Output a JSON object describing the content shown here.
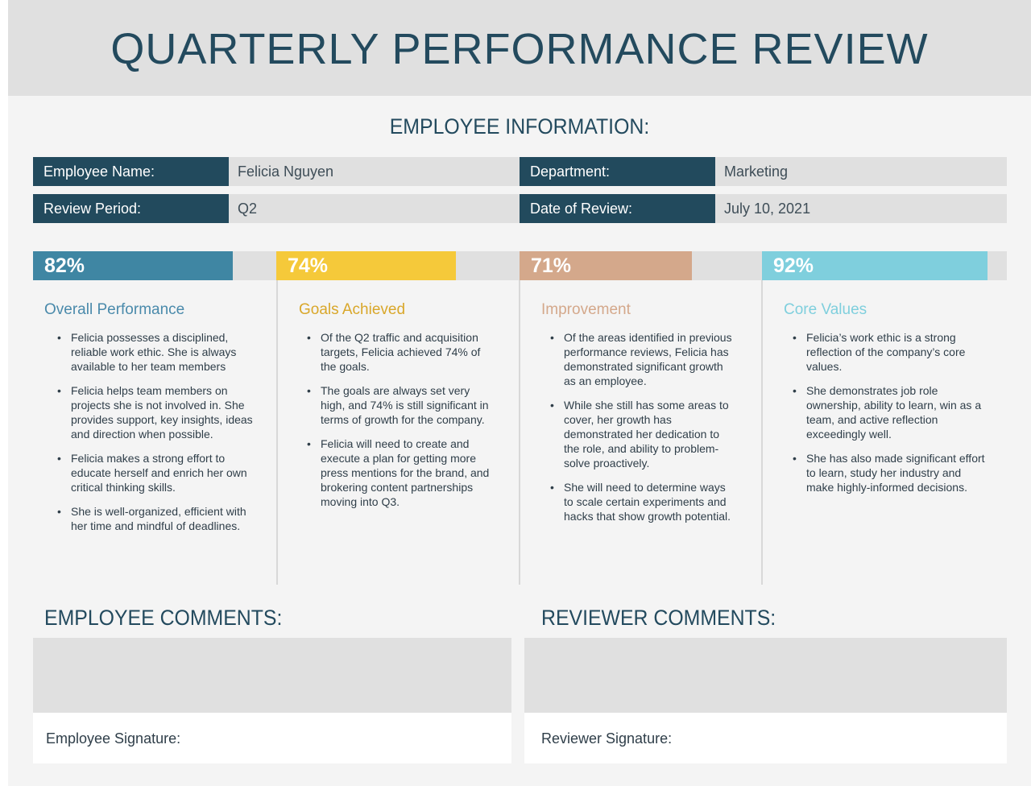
{
  "title": "QUARTERLY PERFORMANCE REVIEW",
  "employee_info": {
    "heading": "EMPLOYEE INFORMATION:",
    "fields": [
      {
        "label": "Employee Name:",
        "value": "Felicia Nguyen"
      },
      {
        "label": "Department:",
        "value": "Marketing"
      },
      {
        "label": "Review Period:",
        "value": "Q2"
      },
      {
        "label": "Date of Review:",
        "value": "July 10, 2021"
      }
    ]
  },
  "metrics": [
    {
      "percent_label": "82%",
      "value": 0.82,
      "color": "#3f86a3",
      "title_color": "#4a8aab",
      "title": "Overall Performance",
      "bullets": [
        "Felicia possesses a disciplined, reliable work ethic. She is always available to her team members",
        "Felicia helps team members on projects she is not involved in. She provides support, key insights, ideas and direction when possible.",
        "Felicia makes a strong effort to educate herself and enrich her own critical thinking skills.",
        "She is well-organized, efficient with her time and mindful of deadlines."
      ]
    },
    {
      "percent_label": "74%",
      "value": 0.74,
      "color": "#f5c93a",
      "title_color": "#d9a72a",
      "title": "Goals Achieved",
      "bullets": [
        "Of the Q2 traffic and acquisition targets, Felicia achieved 74% of the goals.",
        "The goals are always set very high, and 74% is still significant in terms of growth for the company.",
        "Felicia will need to create and execute a plan for getting more press mentions for the brand, and brokering content partnerships moving into Q3."
      ]
    },
    {
      "percent_label": "71%",
      "value": 0.71,
      "color": "#d4a88b",
      "title_color": "#d4a88b",
      "title": "Improvement",
      "bullets": [
        "Of the areas identified in previous performance reviews, Felicia has demonstrated significant growth as an employee.",
        "While she still has some areas to cover, her growth has demonstrated her dedication to the role, and ability to problem-solve proactively.",
        "She will need to determine ways to scale certain experiments and hacks that show growth potential."
      ]
    },
    {
      "percent_label": "92%",
      "value": 0.92,
      "color": "#7fcfdd",
      "title_color": "#7fcfdd",
      "title": "Core Values",
      "bullets": [
        "Felicia’s work ethic is a strong reflection of the company’s core values.",
        "She demonstrates job role ownership, ability to learn, win as a team, and active reflection exceedingly well.",
        "She has also made significant effort to learn, study her industry and make highly-informed decisions."
      ]
    }
  ],
  "comments": {
    "employee_heading": "EMPLOYEE COMMENTS:",
    "reviewer_heading": "REVIEWER COMMENTS:",
    "employee_signature_label": "Employee Signature:",
    "reviewer_signature_label": "Reviewer Signature:"
  }
}
